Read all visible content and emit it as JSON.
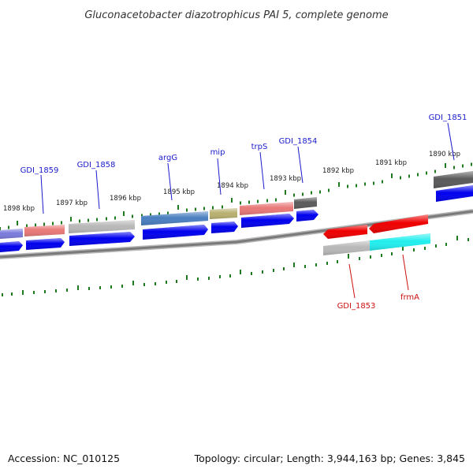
{
  "title": "Gluconacetobacter diazotrophicus PAI 5, complete genome",
  "footer": {
    "accession": "Accession: NC_010125",
    "summary": "Topology: circular; Length: 3,944,163 bp; Genes: 3,845"
  },
  "scale_labels": [
    "1898 kbp",
    "1897 kbp",
    "1896 kbp",
    "1895 kbp",
    "1894 kbp",
    "1893 kbp",
    "1892 kbp",
    "1891 kbp",
    "1890 kbp"
  ],
  "top_gene_labels": [
    "GDI_1859",
    "GDI_1858",
    "argG",
    "mip",
    "trpS",
    "GDI_1854",
    "GDI_1851"
  ],
  "bottom_gene_labels": [
    "GDI_1853",
    "frmA"
  ],
  "colors": {
    "forward_label": "#1a1acc",
    "reverse_label": "#cc1111",
    "tick": "#1e7a1e",
    "backbone": "#888888",
    "cds_arrow_forward": "#0000ee",
    "cds_arrow_reverse": "#ee0000"
  }
}
